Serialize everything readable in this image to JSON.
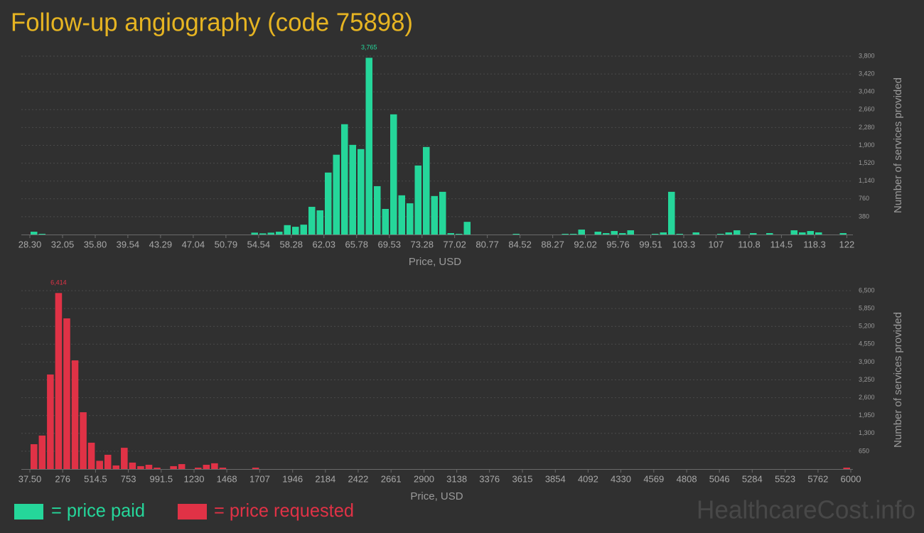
{
  "title": "Follow-up angiography (code 75898)",
  "watermark": "HealthcareCost.info",
  "legend": [
    {
      "label": "= price paid",
      "color": "#25d69a"
    },
    {
      "label": "= price requested",
      "color": "#e03246"
    }
  ],
  "chart_data": [
    {
      "type": "histogram",
      "color": "#25d69a",
      "x_label": "Price, USD",
      "y_label": "Number of services provided",
      "bins": [
        28.3,
        29.2375,
        30.175,
        31.1125,
        32.05,
        32.9875,
        33.925,
        34.8625,
        35.8,
        36.7375,
        37.675,
        38.6125,
        39.55,
        40.4875,
        41.425,
        42.3625,
        43.3,
        44.2375,
        45.175,
        46.1125,
        47.05,
        47.9875,
        48.925,
        49.8625,
        50.8,
        51.7375,
        52.675,
        53.6125,
        54.55,
        55.4875,
        56.425,
        57.3625,
        58.3,
        59.2375,
        60.175,
        61.1125,
        62.05,
        62.9875,
        63.925,
        64.8625,
        65.8,
        66.7375,
        67.675,
        68.6125,
        69.55,
        70.4875,
        71.425,
        72.3625,
        73.3,
        74.2375,
        75.175,
        76.1125,
        77.05,
        77.9875,
        78.925,
        79.8625,
        80.8,
        81.7375,
        82.675,
        83.6125,
        84.55,
        85.4875,
        86.425,
        87.3625,
        88.3,
        89.2375,
        90.175,
        91.1125,
        92.05,
        92.9875,
        93.925,
        94.8625,
        95.8,
        96.7375,
        97.675,
        98.6125,
        99.55,
        100.4875,
        101.425,
        102.3625,
        103.3,
        104.2375,
        105.175,
        106.1125,
        107.05,
        107.9875,
        108.925,
        109.8625,
        110.8,
        111.7375,
        112.675,
        113.6125,
        114.55,
        115.4875,
        116.425,
        117.3625,
        118.3,
        119.2375,
        120.175,
        121.1125,
        122.05
      ],
      "values": [
        60,
        15,
        0,
        0,
        0,
        0,
        0,
        0,
        0,
        0,
        0,
        0,
        0,
        0,
        0,
        0,
        0,
        0,
        0,
        0,
        0,
        0,
        0,
        0,
        0,
        0,
        0,
        40,
        25,
        40,
        60,
        200,
        165,
        210,
        590,
        515,
        1320,
        1700,
        2350,
        1910,
        1820,
        3765,
        1030,
        545,
        2560,
        835,
        665,
        1470,
        1865,
        820,
        910,
        30,
        15,
        270,
        0,
        0,
        0,
        0,
        0,
        15,
        0,
        0,
        0,
        0,
        0,
        15,
        15,
        105,
        0,
        60,
        30,
        75,
        30,
        90,
        0,
        0,
        15,
        45,
        910,
        15,
        0,
        45,
        0,
        0,
        15,
        45,
        90,
        0,
        30,
        0,
        30,
        0,
        0,
        90,
        45,
        75,
        45,
        0,
        0,
        30
      ],
      "value_labels": [
        null,
        null,
        null,
        null,
        null,
        null,
        null,
        null,
        null,
        null,
        null,
        null,
        null,
        null,
        null,
        null,
        null,
        null,
        null,
        null,
        null,
        null,
        null,
        null,
        null,
        null,
        null,
        null,
        null,
        null,
        null,
        null,
        null,
        null,
        null,
        null,
        null,
        null,
        null,
        null,
        null,
        "3,765",
        null,
        null,
        null,
        null,
        null,
        null,
        null,
        null,
        null,
        null,
        null,
        null,
        null,
        null,
        null,
        null,
        null,
        null,
        null,
        null,
        null,
        null,
        null,
        null,
        null,
        null,
        null,
        null,
        null,
        null,
        null,
        null,
        null,
        null,
        null,
        null,
        null,
        null,
        null,
        null,
        null,
        null,
        null,
        null,
        null,
        null,
        null,
        null,
        null,
        null,
        null,
        null,
        null,
        null,
        null,
        null,
        null,
        null
      ],
      "xlim": [
        28.3,
        122.05
      ],
      "xticks": [
        {
          "value": 28.3,
          "label": "28.30"
        },
        32.05,
        {
          "value": 35.8,
          "label": "35.80"
        },
        39.54,
        43.29,
        47.04,
        50.79,
        54.54,
        58.28,
        62.03,
        65.78,
        69.53,
        73.28,
        77.02,
        80.77,
        84.52,
        88.27,
        92.02,
        95.76,
        99.51,
        103.3,
        107,
        110.8,
        114.5,
        118.3,
        122
      ],
      "ylim": [
        0,
        3800
      ],
      "yticks": [
        380,
        760,
        {
          "value": 1140,
          "label": "1,140"
        },
        {
          "value": 1520,
          "label": "1,520"
        },
        {
          "value": 1900,
          "label": "1,900"
        },
        {
          "value": 2280,
          "label": "2,280"
        },
        {
          "value": 2660,
          "label": "2,660"
        },
        {
          "value": 3040,
          "label": "3,040"
        },
        {
          "value": 3420,
          "label": "3,420"
        },
        {
          "value": 3800,
          "label": "3,800"
        }
      ],
      "grid": true
    },
    {
      "type": "histogram",
      "color": "#e03246",
      "x_label": "Price, USD",
      "y_label": "Number of services provided",
      "bins": [
        37.5,
        97.125,
        156.75,
        216.375,
        276,
        335.625,
        395.25,
        454.875,
        514.5,
        574.125,
        633.75,
        693.375,
        753,
        812.625,
        872.25,
        931.875,
        991.5,
        1051.125,
        1110.75,
        1170.375,
        1230,
        1289.625,
        1349.25,
        1408.875,
        1468.5,
        1528.125,
        1587.75,
        1647.375,
        1707,
        1766.625,
        1826.25,
        1885.875,
        1945.5,
        2005.125,
        2064.75,
        2124.375,
        2184,
        2243.625,
        2303.25,
        2362.875,
        2422.5,
        2482.125,
        2541.75,
        2601.375,
        2661,
        2720.625,
        2780.25,
        2839.875,
        2899.5,
        2959.125,
        3018.75,
        3078.375,
        3138,
        3197.625,
        3257.25,
        3316.875,
        3376.5,
        3436.125,
        3495.75,
        3555.375,
        3615,
        3674.625,
        3734.25,
        3793.875,
        3853.5,
        3913.125,
        3972.75,
        4032.375,
        4092,
        4151.625,
        4211.25,
        4270.875,
        4330.5,
        4390.125,
        4449.75,
        4509.375,
        4569,
        4628.625,
        4688.25,
        4747.875,
        4807.5,
        4867.125,
        4926.75,
        4986.375,
        5046,
        5105.625,
        5165.25,
        5224.875,
        5284.5,
        5344.125,
        5403.75,
        5463.375,
        5523,
        5582.625,
        5642.25,
        5701.875,
        5761.5,
        5821.125,
        5880.75,
        5940.375,
        6000
      ],
      "values": [
        905,
        1220,
        3445,
        6414,
        5490,
        3960,
        2070,
        960,
        300,
        520,
        130,
        775,
        235,
        105,
        155,
        50,
        0,
        105,
        180,
        0,
        50,
        155,
        210,
        50,
        0,
        0,
        0,
        50,
        0,
        0,
        0,
        0,
        0,
        0,
        0,
        0,
        0,
        0,
        0,
        0,
        0,
        0,
        0,
        0,
        0,
        0,
        0,
        0,
        0,
        0,
        0,
        0,
        0,
        0,
        0,
        0,
        0,
        0,
        0,
        0,
        0,
        0,
        0,
        0,
        0,
        0,
        0,
        0,
        0,
        0,
        0,
        0,
        0,
        0,
        0,
        0,
        0,
        0,
        0,
        0,
        0,
        0,
        0,
        0,
        0,
        0,
        0,
        0,
        0,
        0,
        0,
        0,
        0,
        0,
        0,
        0,
        0,
        0,
        0,
        50
      ],
      "value_labels": [
        null,
        null,
        null,
        "6,414",
        null,
        null,
        null,
        null,
        null,
        null,
        null,
        null,
        null,
        null,
        null,
        null,
        null,
        null,
        null,
        null,
        null,
        null,
        null,
        null,
        null,
        null,
        null,
        null,
        null,
        null,
        null,
        null,
        null,
        null,
        null,
        null,
        null,
        null,
        null,
        null,
        null,
        null,
        null,
        null,
        null,
        null,
        null,
        null,
        null,
        null,
        null,
        null,
        null,
        null,
        null,
        null,
        null,
        null,
        null,
        null,
        null,
        null,
        null,
        null,
        null,
        null,
        null,
        null,
        null,
        null,
        null,
        null,
        null,
        null,
        null,
        null,
        null,
        null,
        null,
        null,
        null,
        null,
        null,
        null,
        null,
        null,
        null,
        null,
        null,
        null,
        null,
        null,
        null,
        null,
        null,
        null,
        null,
        null,
        null,
        null
      ],
      "xlim": [
        37.5,
        6000
      ],
      "xticks": [
        {
          "value": 37.5,
          "label": "37.50"
        },
        276,
        514.5,
        753,
        991.5,
        1230,
        1468,
        1707,
        1946,
        2184,
        2422,
        2661,
        2900,
        3138,
        3376,
        3615,
        3854,
        4092,
        4330,
        4569,
        4808,
        5046,
        5284,
        5523,
        5762,
        6000
      ],
      "ylim": [
        0,
        6500
      ],
      "yticks": [
        650,
        {
          "value": 1300,
          "label": "1,300"
        },
        {
          "value": 1950,
          "label": "1,950"
        },
        {
          "value": 2600,
          "label": "2,600"
        },
        {
          "value": 3250,
          "label": "3,250"
        },
        {
          "value": 3900,
          "label": "3,900"
        },
        {
          "value": 4550,
          "label": "4,550"
        },
        {
          "value": 5200,
          "label": "5,200"
        },
        {
          "value": 5850,
          "label": "5,850"
        },
        {
          "value": 6500,
          "label": "6,500"
        }
      ],
      "grid": true
    }
  ]
}
